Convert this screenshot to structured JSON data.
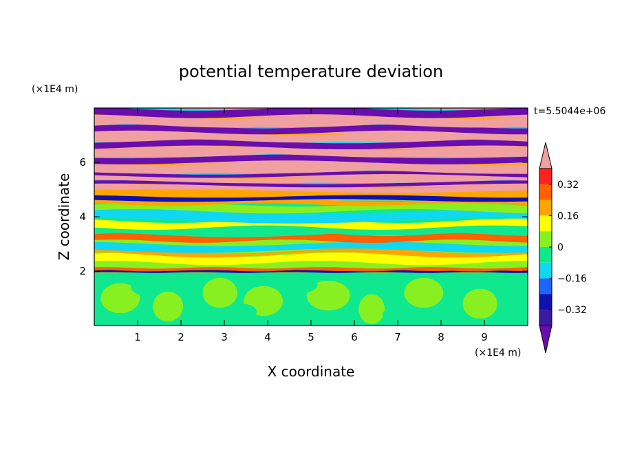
{
  "chart_data": {
    "type": "heatmap",
    "title": "potential temperature deviation",
    "xlabel": "X coordinate",
    "ylabel": "Z coordinate",
    "x_unit": "(×1E4 m)",
    "z_unit": "(×1E4 m)",
    "time_label": "t=5.5044e+06",
    "xlim": [
      0,
      10
    ],
    "ylim": [
      0,
      8
    ],
    "x_ticks": [
      1,
      2,
      3,
      4,
      5,
      6,
      7,
      8,
      9
    ],
    "y_ticks": [
      2,
      4,
      6
    ],
    "colorbar": {
      "levels": [
        -0.4,
        -0.32,
        -0.24,
        -0.16,
        -0.08,
        0,
        0.08,
        0.16,
        0.24,
        0.32,
        0.4
      ],
      "tick_values": [
        0.32,
        0.16,
        0,
        -0.16,
        -0.32
      ],
      "tick_labels": [
        "0.32",
        "0.16",
        "0",
        "−0.16",
        "−0.32"
      ],
      "colors": [
        "#6a0dad",
        "#3a1aa0",
        "#1010b0",
        "#1e64ff",
        "#10d8f0",
        "#10e890",
        "#88f020",
        "#ffff00",
        "#ffa500",
        "#ff6000",
        "#ff2020",
        "#f0a0a0"
      ],
      "extend": "both"
    },
    "layers": [
      {
        "z": [
          0,
          1.95
        ],
        "value": -0.02,
        "note_color": "#10e890"
      },
      {
        "z": [
          1.95,
          2.05
        ],
        "value": 0.3
      },
      {
        "z": [
          2.05,
          3.3
        ],
        "value": 0.05
      },
      {
        "z": [
          3.3,
          4.6
        ],
        "value": -0.04
      },
      {
        "z": [
          4.6,
          5.0
        ],
        "value": 0.2
      },
      {
        "z": [
          5.0,
          8.0
        ],
        "value": 0.42,
        "alternating_with": -0.42
      }
    ]
  }
}
